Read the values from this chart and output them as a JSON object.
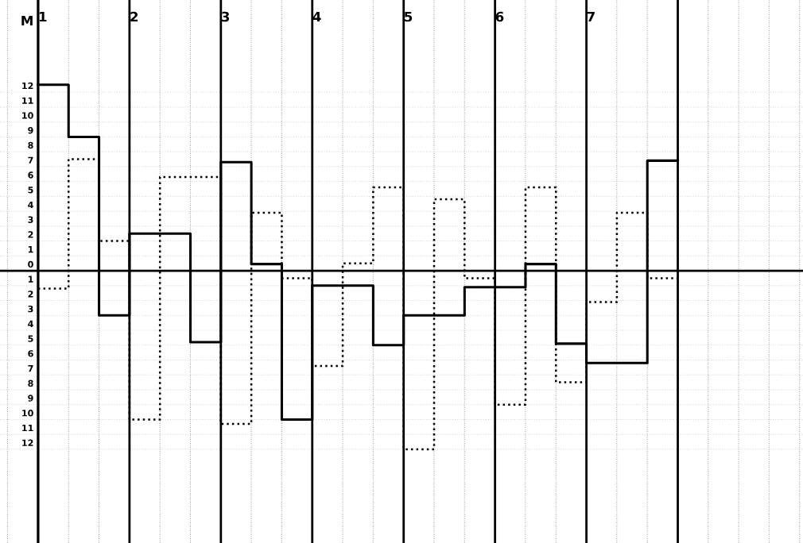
{
  "chart_data": {
    "type": "step",
    "ylabel": "M",
    "x": [
      1,
      1.3333,
      1.6667,
      2,
      2.3333,
      2.6667,
      3,
      3.3333,
      3.6667,
      4,
      4.3333,
      4.6667,
      5,
      5.3333,
      5.6667,
      6,
      6.3333,
      6.6667,
      7,
      7.3333,
      7.6667,
      8
    ],
    "series": [
      {
        "color": "#000000",
        "line_style": "solid",
        "values": [
          12.5,
          9,
          -3,
          2.5,
          2.5,
          -4.8,
          7.3,
          0.45,
          -10,
          -1,
          -1,
          -5,
          -3,
          -3,
          -1.1,
          -1.1,
          0.45,
          -4.9,
          -6.2,
          -6.2,
          7.4,
          7.4
        ]
      },
      {
        "color": "#000000",
        "line_style": "dotted",
        "values": [
          -1.2,
          7.5,
          2,
          -10,
          6.3,
          6.3,
          -10.3,
          3.9,
          -0.5,
          -6.4,
          0.5,
          5.6,
          -12,
          4.8,
          -0.5,
          -9,
          5.6,
          -7.5,
          -2.1,
          3.9,
          -0.5,
          -0.5
        ]
      }
    ],
    "xlim": [
      0.583,
      9.37
    ],
    "ylim": [
      -18.3,
      18.2
    ],
    "xticks": [
      1,
      2,
      3,
      4,
      5,
      6,
      7,
      {
        "value": 8,
        "label": null
      }
    ],
    "yticks": [
      {
        "value": -12,
        "label": "12"
      },
      {
        "value": -11,
        "label": "11"
      },
      {
        "value": -10,
        "label": "10"
      },
      {
        "value": -9,
        "label": "9"
      },
      {
        "value": -8,
        "label": "8"
      },
      {
        "value": -7,
        "label": "7"
      },
      {
        "value": -6,
        "label": "6"
      },
      {
        "value": -5,
        "label": "5"
      },
      {
        "value": -4,
        "label": "4"
      },
      {
        "value": -3,
        "label": "3"
      },
      {
        "value": -2,
        "label": "2"
      },
      {
        "value": -1,
        "label": "1"
      },
      0,
      1,
      2,
      3,
      4,
      5,
      6,
      7,
      8,
      9,
      10,
      11,
      12
    ],
    "grid": true
  }
}
